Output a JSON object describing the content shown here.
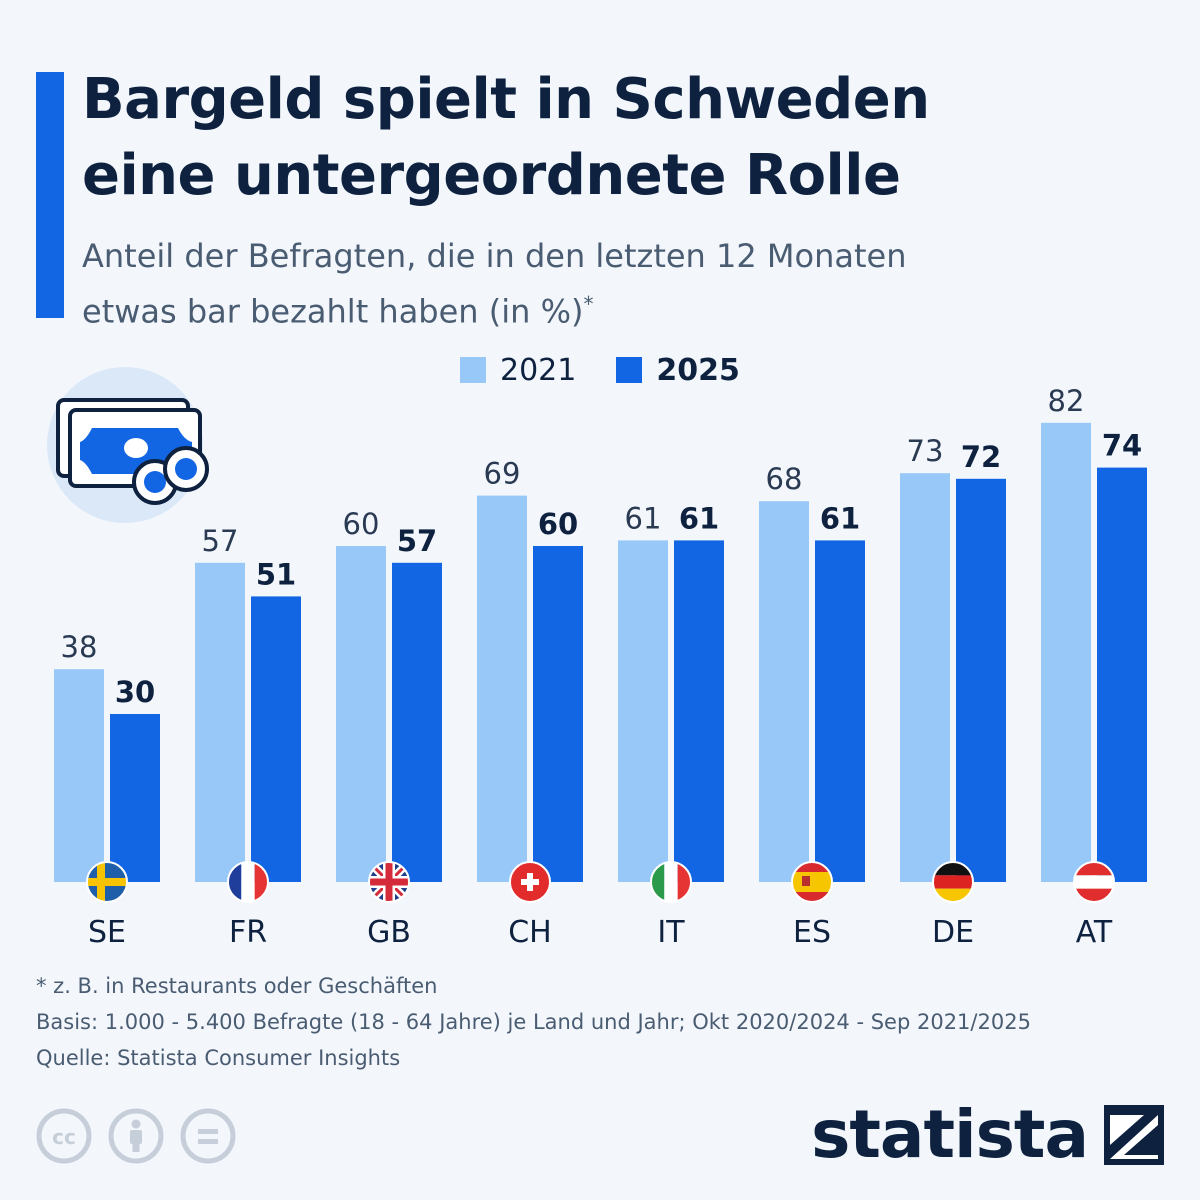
{
  "header": {
    "title_line1": "Bargeld spielt in Schweden",
    "title_line2": "eine untergeordnete Rolle",
    "subtitle_line1": "Anteil der Befragten, die in den letzten 12 Monaten",
    "subtitle_line2": "etwas bar bezahlt haben (in %)",
    "subtitle_mark": "*"
  },
  "colors": {
    "series_2021": "#98c8f8",
    "series_2025": "#1266e3",
    "text_dark": "#0e2240",
    "accent": "#1266e3"
  },
  "chart_data": {
    "type": "bar",
    "categories": [
      "SE",
      "FR",
      "GB",
      "CH",
      "IT",
      "ES",
      "DE",
      "AT"
    ],
    "category_icons": [
      "flag-sweden-icon",
      "flag-france-icon",
      "flag-uk-icon",
      "flag-switzerland-icon",
      "flag-italy-icon",
      "flag-spain-icon",
      "flag-germany-icon",
      "flag-austria-icon"
    ],
    "series": [
      {
        "name": "2021",
        "values": [
          38,
          57,
          60,
          69,
          61,
          68,
          73,
          82
        ]
      },
      {
        "name": "2025",
        "values": [
          30,
          51,
          57,
          60,
          61,
          61,
          72,
          74
        ]
      }
    ],
    "ylim": [
      0,
      90
    ],
    "grid": false,
    "legend": "top-center",
    "title": "Bargeld spielt in Schweden eine untergeordnete Rolle",
    "xlabel": "",
    "ylabel": ""
  },
  "footnotes": {
    "note": "* z. B. in Restaurants oder Geschäften",
    "basis": "Basis: 1.000 - 5.400 Befragte (18 - 64 Jahre) je Land und Jahr; Okt 2020/2024 - Sep 2021/2025",
    "source": "Quelle: Statista Consumer Insights"
  },
  "brand": {
    "name": "statista",
    "icon": "statista-logo-icon"
  },
  "illustration": {
    "icon": "cash-money-icon"
  },
  "license_icons": [
    "creative-commons-icon",
    "attribution-icon",
    "no-derivatives-icon"
  ]
}
